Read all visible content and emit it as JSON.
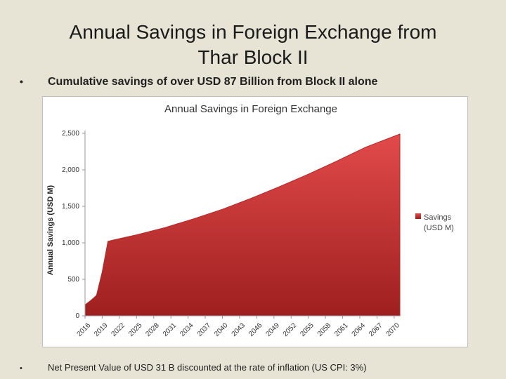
{
  "slide": {
    "title_line1": "Annual Savings in Foreign Exchange from",
    "title_line2": "Thar Block II",
    "bullet_top": "Cumulative savings of over USD 87 Billion from Block II alone",
    "bullet_bottom": "Net Present Value of USD 31 B discounted at the rate of inflation (US CPI: 3%)"
  },
  "chart_data": {
    "type": "area",
    "title": "Annual Savings in Foreign Exchange",
    "ylabel": "Annual Savings (USD M)",
    "xlabel": "",
    "ylim": [
      0,
      2500
    ],
    "yticks": [
      0,
      500,
      1000,
      1500,
      2000,
      2500
    ],
    "ytick_labels": [
      "0",
      "500",
      "1,000",
      "1,500",
      "2,000",
      "2,500"
    ],
    "xlim": [
      2016,
      2071
    ],
    "xticks": [
      "2016",
      "2019",
      "2022",
      "2025",
      "2028",
      "2031",
      "2034",
      "2037",
      "2040",
      "2043",
      "2046",
      "2049",
      "2052",
      "2055",
      "2058",
      "2061",
      "2064",
      "2067",
      "2070"
    ],
    "legend_position": "right",
    "grid": false,
    "color": "#c83232",
    "series": [
      {
        "name": "Savings (USD M)",
        "x": [
          2016,
          2017,
          2018,
          2019,
          2020,
          2021,
          2025,
          2030,
          2035,
          2040,
          2045,
          2050,
          2055,
          2060,
          2065,
          2071
        ],
        "values": [
          150,
          210,
          280,
          600,
          1020,
          1040,
          1110,
          1210,
          1330,
          1460,
          1610,
          1770,
          1940,
          2120,
          2310,
          2490
        ]
      }
    ]
  }
}
